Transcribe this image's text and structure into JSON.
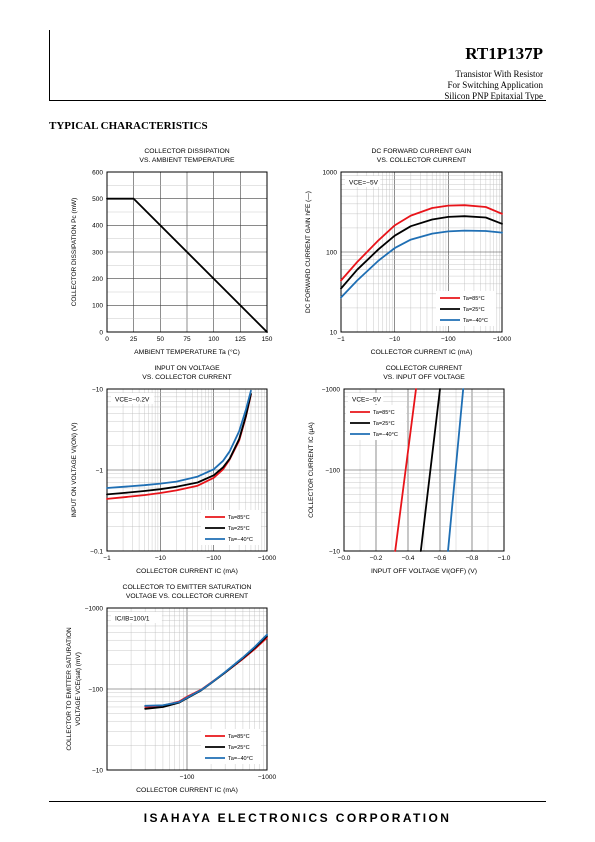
{
  "header": {
    "part_number": "RT1P137P",
    "lines": [
      "Transistor With Resistor",
      "For Switching Application",
      "Silicon PNP Epitaxial Type"
    ]
  },
  "section_title": "TYPICAL CHARACTERISTICS",
  "footer": {
    "company": "ISAHAYA ELECTRONICS CORPORATION"
  },
  "chart_data": [
    {
      "id": "pd",
      "type": "line",
      "title_lines": [
        "COLLECTOR DISSIPATION",
        "VS. AMBIENT TEMPERATURE"
      ],
      "xlabel": "AMBIENT TEMPERATURE  Ta (°C)",
      "ylabel": "COLLECTOR DISSIPATION  Pc (mW)",
      "xscale": "linear",
      "yscale": "linear",
      "xlim": [
        0,
        150
      ],
      "ylim": [
        0,
        600
      ],
      "xticks": [
        0,
        25,
        50,
        75,
        100,
        125,
        150
      ],
      "xtick_labels": [
        "0",
        "25",
        "50",
        "75",
        "100",
        "125",
        "150"
      ],
      "yticks": [
        0,
        100,
        200,
        300,
        400,
        500,
        600
      ],
      "ytick_labels": [
        "0",
        "100",
        "200",
        "300",
        "400",
        "500",
        "600"
      ],
      "grid": true,
      "series": [
        {
          "color": "#000000",
          "x": [
            0,
            25,
            150
          ],
          "y": [
            500,
            500,
            0
          ]
        }
      ]
    },
    {
      "id": "hfe",
      "type": "line",
      "title_lines": [
        "DC FORWARD CURRENT GAIN",
        "VS. COLLECTOR CURRENT"
      ],
      "xlabel": "COLLECTOR CURRENT  IC (mA)",
      "ylabel": "DC FORWARD CURRENT GAIN   hFE (—)",
      "xscale": "log",
      "yscale": "log",
      "xlim": [
        1,
        1000
      ],
      "ylim": [
        10,
        1000
      ],
      "xticks": [
        1,
        10,
        100,
        1000
      ],
      "xtick_labels": [
        "−1",
        "−10",
        "−100",
        "−1000"
      ],
      "yticks": [
        10,
        100,
        1000
      ],
      "ytick_labels": [
        "10",
        "100",
        "1000"
      ],
      "grid": true,
      "condition": "VCE=−5V",
      "legend_position": "bottom-right",
      "series": [
        {
          "name": "Ta=85°C",
          "color": "#e8141a",
          "x": [
            1,
            2,
            5,
            10,
            20,
            50,
            100,
            200,
            500,
            1000
          ],
          "y": [
            44,
            75,
            140,
            215,
            285,
            355,
            380,
            385,
            365,
            300
          ]
        },
        {
          "name": "Ta=25°C",
          "color": "#000000",
          "x": [
            1,
            2,
            5,
            10,
            20,
            50,
            100,
            200,
            500,
            1000
          ],
          "y": [
            35,
            60,
            108,
            160,
            210,
            255,
            275,
            280,
            270,
            225
          ]
        },
        {
          "name": "Ta=−40°C",
          "color": "#1f6fb4",
          "x": [
            1,
            2,
            5,
            10,
            20,
            50,
            100,
            200,
            500,
            1000
          ],
          "y": [
            27,
            44,
            78,
            112,
            143,
            170,
            181,
            185,
            183,
            175
          ]
        }
      ]
    },
    {
      "id": "vion",
      "type": "line",
      "title_lines": [
        "INPUT ON VOLTAGE",
        "VS. COLLECTOR CURRENT"
      ],
      "xlabel": "COLLECTOR CURRENT   IC (mA)",
      "ylabel": "INPUT ON VOLTAGE VI(ON) (V)",
      "xscale": "log",
      "yscale": "log",
      "xlim": [
        1,
        1000
      ],
      "ylim": [
        0.1,
        10
      ],
      "xticks": [
        1,
        10,
        100,
        1000
      ],
      "xtick_labels": [
        "−1",
        "−10",
        "−100",
        "−1000"
      ],
      "yticks": [
        0.1,
        1,
        10
      ],
      "ytick_labels": [
        "−0.1",
        "−1",
        "−10"
      ],
      "grid": true,
      "condition": "VCE=−0.2V",
      "legend_position": "bottom-right",
      "series": [
        {
          "name": "Ta=85°C",
          "color": "#e8141a",
          "x": [
            1,
            2,
            5,
            10,
            20,
            50,
            100,
            150,
            200,
            300,
            400,
            500
          ],
          "y": [
            0.44,
            0.46,
            0.49,
            0.52,
            0.56,
            0.64,
            0.8,
            1.02,
            1.35,
            2.3,
            4.5,
            8.5
          ]
        },
        {
          "name": "Ta=25°C",
          "color": "#000000",
          "x": [
            1,
            2,
            5,
            10,
            20,
            50,
            100,
            150,
            200,
            300,
            400,
            500
          ],
          "y": [
            0.5,
            0.52,
            0.55,
            0.58,
            0.62,
            0.7,
            0.86,
            1.08,
            1.38,
            2.4,
            4.6,
            8.7
          ]
        },
        {
          "name": "Ta=−40°C",
          "color": "#1f6fb4",
          "x": [
            1,
            2,
            5,
            10,
            20,
            50,
            100,
            150,
            200,
            300,
            400,
            500
          ],
          "y": [
            0.6,
            0.62,
            0.65,
            0.68,
            0.72,
            0.83,
            1.02,
            1.3,
            1.7,
            3.0,
            5.5,
            9.5
          ]
        }
      ]
    },
    {
      "id": "ic",
      "type": "line",
      "title_lines": [
        "COLLECTOR CURRENT",
        "VS. INPUT OFF VOLTAGE"
      ],
      "xlabel": "INPUT OFF VOLTAGE VI(OFF) (V)",
      "ylabel": "COLLECTOR CURRENT IC (μA)",
      "xscale": "linear",
      "yscale": "log",
      "xlim": [
        0,
        1.0
      ],
      "ylim": [
        10,
        1000
      ],
      "xticks": [
        0,
        0.2,
        0.4,
        0.6,
        0.8,
        1.0
      ],
      "xtick_labels": [
        "−0.0",
        "−0.2",
        "−0.4",
        "−0.6",
        "−0.8",
        "−1.0"
      ],
      "yticks": [
        10,
        100,
        1000
      ],
      "ytick_labels": [
        "−10",
        "−100",
        "−1000"
      ],
      "grid": true,
      "condition": "VCE=−5V",
      "legend_position": "top-left",
      "series": [
        {
          "name": "Ta=85°C",
          "color": "#e8141a",
          "x": [
            0.32,
            0.45
          ],
          "y": [
            10,
            1000
          ]
        },
        {
          "name": "Ta=25°C",
          "color": "#000000",
          "x": [
            0.48,
            0.6
          ],
          "y": [
            10,
            1000
          ]
        },
        {
          "name": "Ta=−40°C",
          "color": "#1f6fb4",
          "x": [
            0.65,
            0.745
          ],
          "y": [
            10,
            1000
          ]
        }
      ]
    },
    {
      "id": "vcesat",
      "type": "line",
      "title_lines": [
        "COLLECTOR TO EMITTER SATURATION",
        "VOLTAGE VS. COLLECTOR CURRENT"
      ],
      "xlabel": "COLLECTOR CURRENT  IC (mA)",
      "ylabel_lines": [
        "COLLECTOR TO EMITTER SATURATION",
        "VOLTAGE VCE(sat) (mV)"
      ],
      "xscale": "log",
      "yscale": "log",
      "xlim": [
        10,
        1000
      ],
      "ylim": [
        10,
        1000
      ],
      "xticks": [
        10,
        100,
        1000
      ],
      "xtick_labels": [
        "",
        "−100",
        "−1000"
      ],
      "yticks": [
        10,
        100,
        1000
      ],
      "ytick_labels": [
        "−10",
        "−100",
        "−1000"
      ],
      "grid": true,
      "condition": "IC/IB=100/1",
      "legend_position": "bottom-right",
      "series": [
        {
          "name": "Ta=85°C",
          "color": "#e8141a",
          "x": [
            30,
            50,
            80,
            100,
            150,
            200,
            300,
            500,
            700,
            1000
          ],
          "y": [
            60,
            62,
            70,
            80,
            98,
            120,
            160,
            235,
            310,
            430
          ]
        },
        {
          "name": "Ta=25°C",
          "color": "#000000",
          "x": [
            30,
            50,
            80,
            100,
            150,
            200,
            300,
            500,
            700,
            1000
          ],
          "y": [
            57,
            60,
            68,
            77,
            96,
            118,
            160,
            240,
            320,
            450
          ]
        },
        {
          "name": "Ta=−40°C",
          "color": "#1f6fb4",
          "x": [
            30,
            50,
            80,
            100,
            150,
            200,
            300,
            500,
            700,
            1000
          ],
          "y": [
            62,
            63,
            69,
            78,
            97,
            119,
            162,
            245,
            330,
            470
          ]
        }
      ]
    }
  ]
}
